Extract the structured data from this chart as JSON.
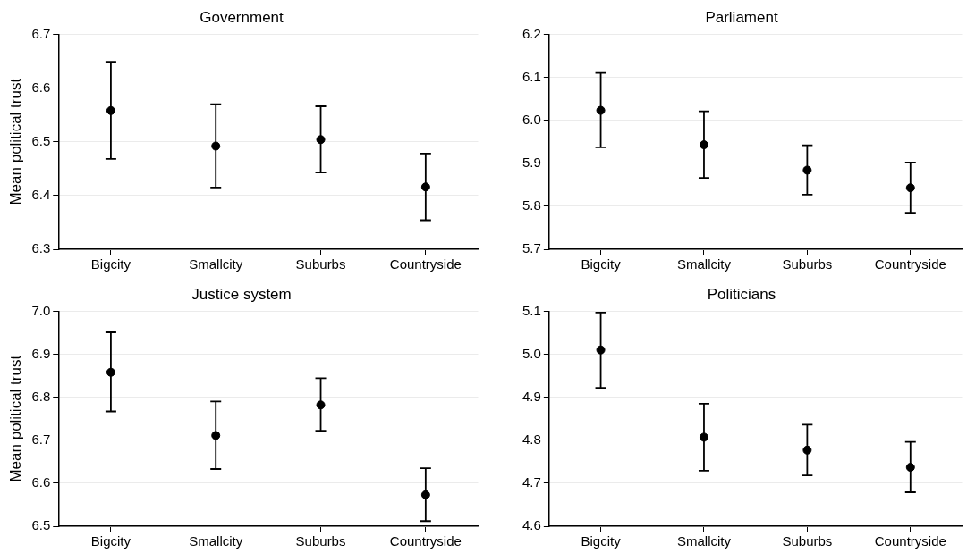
{
  "chart_data": [
    {
      "type": "scatter",
      "title": "Government",
      "ylabel": "Mean political trust",
      "categories": [
        "Bigcity",
        "Smallcity",
        "Suburbs",
        "Countryside"
      ],
      "values": [
        6.558,
        6.492,
        6.504,
        6.416
      ],
      "errors": [
        [
          6.468,
          6.649
        ],
        [
          6.415,
          6.57
        ],
        [
          6.443,
          6.566
        ],
        [
          6.354,
          6.478
        ]
      ],
      "color": "#000000",
      "marker": "circle",
      "ylim": [
        6.3,
        6.7
      ],
      "yticks": [
        6.3,
        6.4,
        6.5,
        6.6,
        6.7
      ],
      "grid": "y"
    },
    {
      "type": "scatter",
      "title": "Parliament",
      "categories": [
        "Bigcity",
        "Smallcity",
        "Suburbs",
        "Countryside"
      ],
      "values": [
        6.023,
        5.943,
        5.884,
        5.843
      ],
      "errors": [
        [
          5.937,
          6.11
        ],
        [
          5.866,
          6.021
        ],
        [
          5.827,
          5.942
        ],
        [
          5.785,
          5.902
        ]
      ],
      "color": "#000000",
      "marker": "circle",
      "ylim": [
        5.7,
        6.2
      ],
      "yticks": [
        5.7,
        5.8,
        5.9,
        {
          "value": 6,
          "label": "6.0"
        },
        6.1,
        6.2
      ],
      "grid": "y"
    },
    {
      "type": "scatter",
      "title": "Justice system",
      "ylabel": "Mean political trust",
      "categories": [
        "Bigcity",
        "Smallcity",
        "Suburbs",
        "Countryside"
      ],
      "values": [
        6.858,
        6.711,
        6.782,
        6.573
      ],
      "errors": [
        [
          6.767,
          6.951
        ],
        [
          6.633,
          6.79
        ],
        [
          6.722,
          6.844
        ],
        [
          6.512,
          6.635
        ]
      ],
      "color": "#000000",
      "marker": "circle",
      "ylim": [
        6.5,
        7
      ],
      "yticks": [
        6.5,
        6.6,
        6.7,
        6.8,
        6.9,
        {
          "value": 7,
          "label": "7.0"
        }
      ],
      "grid": "y"
    },
    {
      "type": "scatter",
      "title": "Politicians",
      "categories": [
        "Bigcity",
        "Smallcity",
        "Suburbs",
        "Countryside"
      ],
      "values": [
        5.01,
        4.807,
        4.777,
        4.737
      ],
      "errors": [
        [
          4.922,
          5.097
        ],
        [
          4.729,
          4.885
        ],
        [
          4.718,
          4.836
        ],
        [
          4.679,
          4.796
        ]
      ],
      "color": "#000000",
      "marker": "circle",
      "ylim": [
        4.6,
        5.1
      ],
      "yticks": [
        4.6,
        4.7,
        4.8,
        4.9,
        {
          "value": 5,
          "label": "5.0"
        },
        5.1
      ],
      "grid": "y"
    }
  ]
}
